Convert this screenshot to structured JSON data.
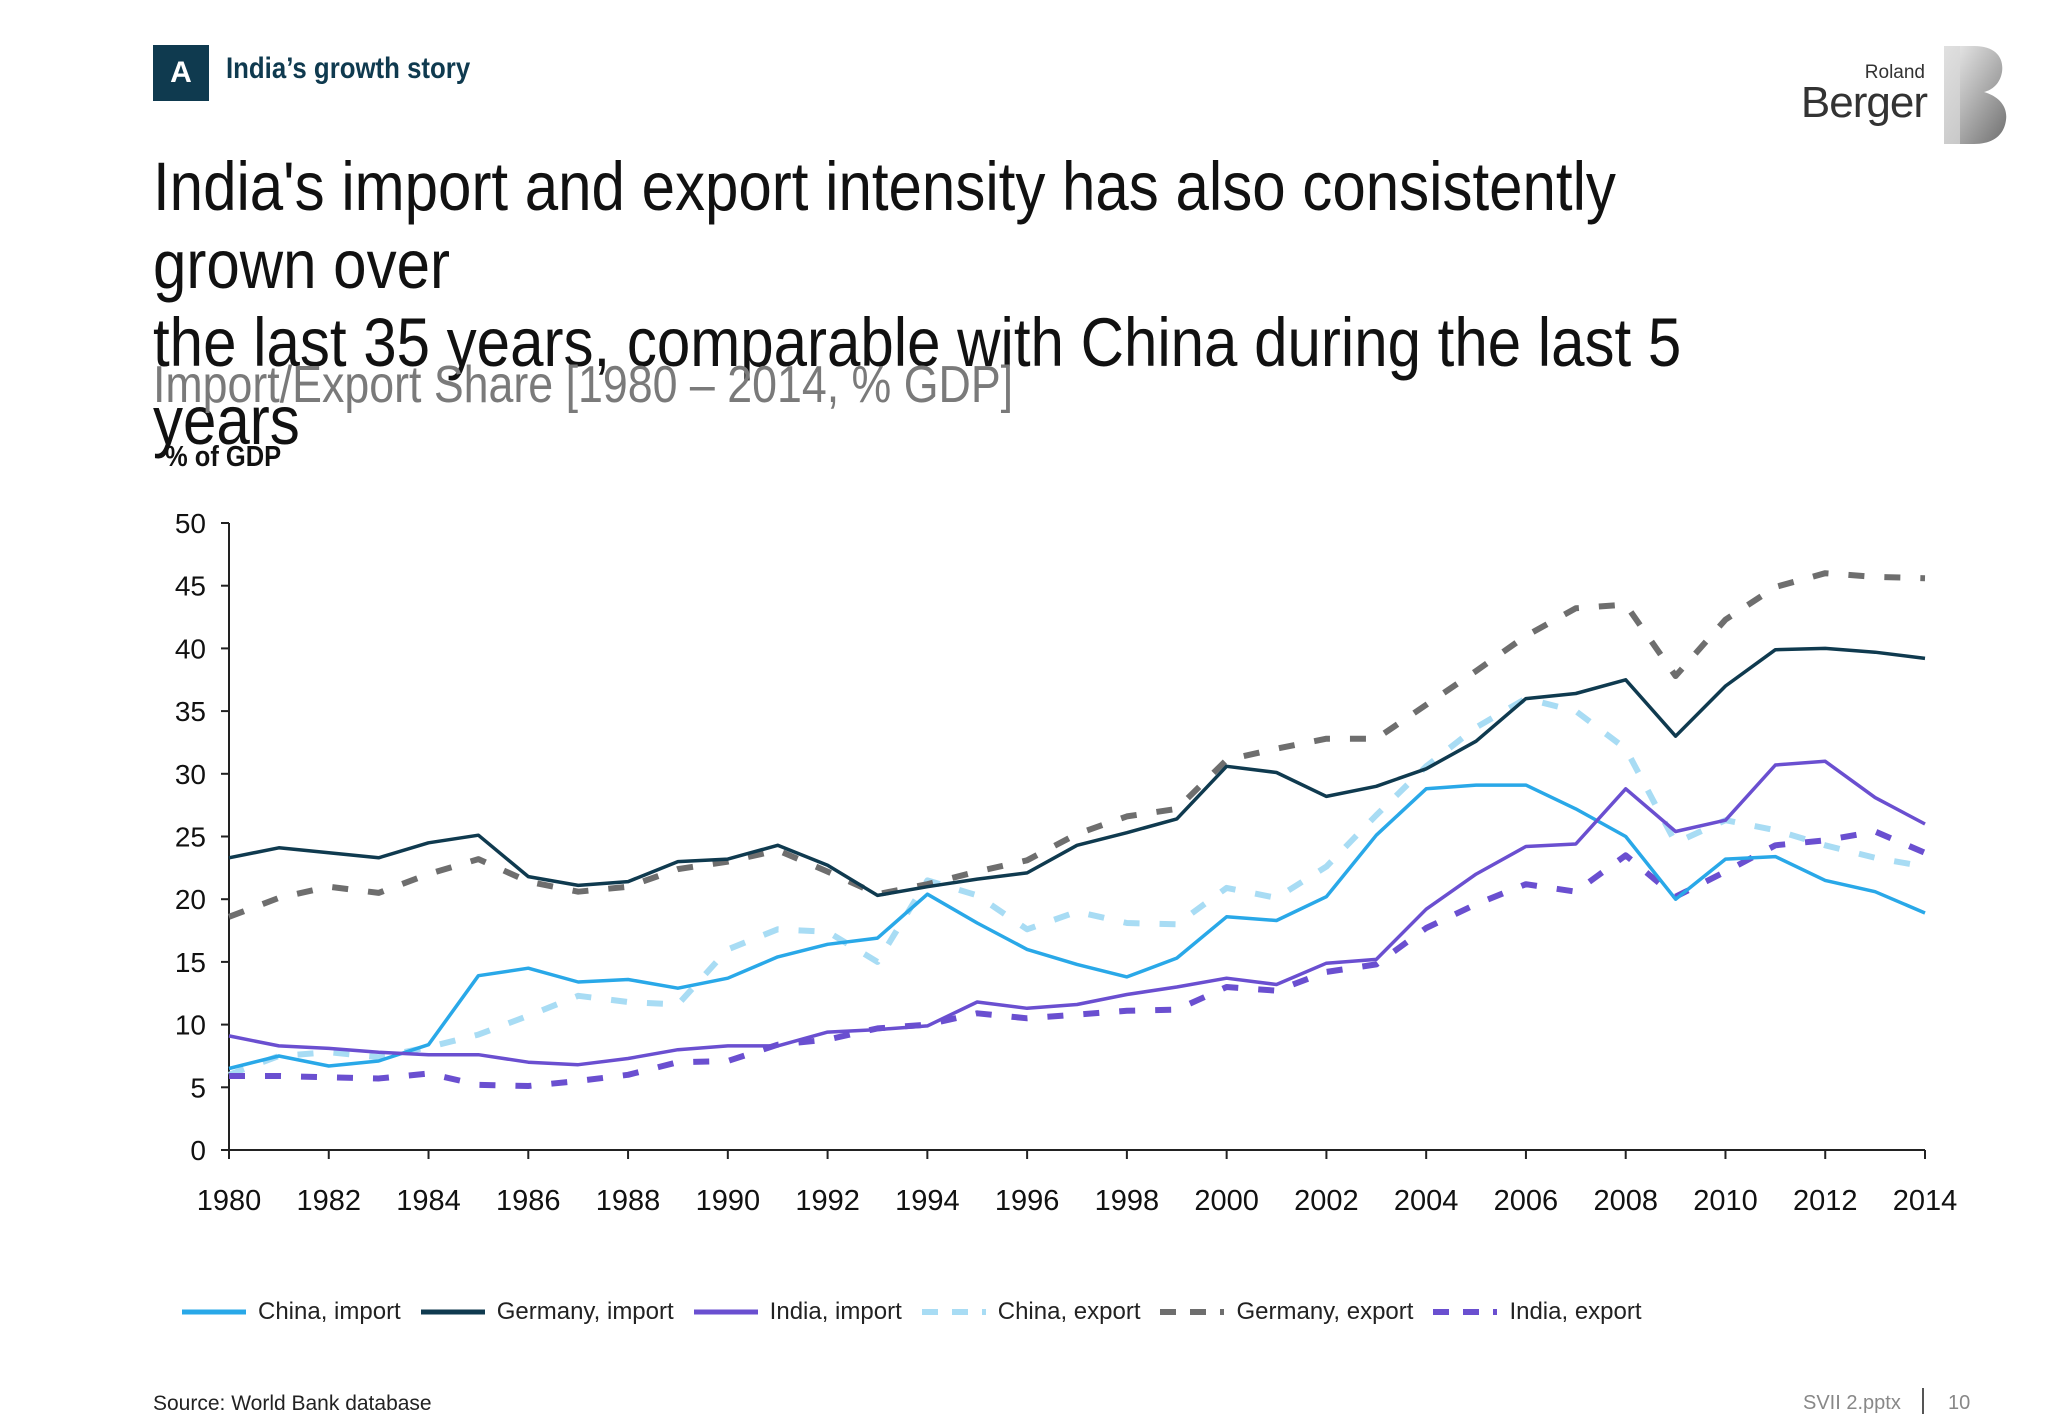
{
  "header": {
    "badge": "A",
    "section_title": "India’s growth story",
    "logo_small": "Roland",
    "logo_large": "Berger"
  },
  "headline": {
    "line1": "India's import and export intensity has also consistently grown over",
    "line2": "the last 35 years, comparable with China during the last 5 years"
  },
  "footer": {
    "source": "Source: World Bank database",
    "file": "SVII 2.pptx",
    "page": "10"
  },
  "colors": {
    "china": "#29a8e8",
    "germany": "#0f3a4f",
    "india": "#6a4fd0",
    "china_export": "#a8dcf4",
    "germany_export": "#6e6e6e",
    "india_export": "#6a4fd0",
    "axis": "#222222"
  },
  "chart_data": {
    "type": "line",
    "title": "Import/Export Share [1980 – 2014, % GDP]",
    "xlabel": "",
    "ylabel": "% of GDP",
    "ylim": [
      0,
      50
    ],
    "yticks": [
      0,
      5,
      10,
      15,
      20,
      25,
      30,
      35,
      40,
      45,
      50
    ],
    "xlim": [
      1980,
      2014
    ],
    "xticks": [
      1980,
      1982,
      1984,
      1986,
      1988,
      1990,
      1992,
      1994,
      1996,
      1998,
      2000,
      2002,
      2004,
      2006,
      2008,
      2010,
      2012,
      2014
    ],
    "grid": false,
    "legend_position": "bottom",
    "x": [
      1980,
      1981,
      1982,
      1983,
      1984,
      1985,
      1986,
      1987,
      1988,
      1989,
      1990,
      1991,
      1992,
      1993,
      1994,
      1995,
      1996,
      1997,
      1998,
      1999,
      2000,
      2001,
      2002,
      2003,
      2004,
      2005,
      2006,
      2007,
      2008,
      2009,
      2010,
      2011,
      2012,
      2013,
      2014
    ],
    "series": [
      {
        "name": "China, import",
        "style": "solid",
        "color": "#29a8e8",
        "values": [
          6.5,
          7.5,
          6.7,
          7.1,
          8.4,
          13.9,
          14.5,
          13.4,
          13.6,
          12.9,
          13.7,
          15.4,
          16.4,
          16.9,
          20.4,
          18.1,
          16.0,
          14.8,
          13.8,
          15.3,
          18.6,
          18.3,
          20.2,
          25.1,
          28.8,
          29.1,
          29.1,
          27.2,
          25.0,
          20.0,
          23.2,
          23.4,
          21.5,
          20.6,
          18.9
        ]
      },
      {
        "name": "Germany, import",
        "style": "solid",
        "color": "#0f3a4f",
        "values": [
          23.3,
          24.1,
          23.7,
          23.3,
          24.5,
          25.1,
          21.8,
          21.1,
          21.4,
          23.0,
          23.2,
          24.3,
          22.7,
          20.3,
          21.0,
          21.6,
          22.1,
          24.3,
          25.3,
          26.4,
          30.6,
          30.1,
          28.2,
          29.0,
          30.4,
          32.6,
          36.0,
          36.4,
          37.5,
          33.0,
          37.0,
          39.9,
          40.0,
          39.7,
          39.2
        ]
      },
      {
        "name": "India, import",
        "style": "solid",
        "color": "#6a4fd0",
        "values": [
          9.1,
          8.3,
          8.1,
          7.8,
          7.6,
          7.6,
          7.0,
          6.8,
          7.3,
          8.0,
          8.3,
          8.3,
          9.4,
          9.6,
          9.9,
          11.8,
          11.3,
          11.6,
          12.4,
          13.0,
          13.7,
          13.2,
          14.9,
          15.2,
          19.2,
          22.0,
          24.2,
          24.4,
          28.8,
          25.4,
          26.3,
          30.7,
          31.0,
          28.1,
          26.0
        ]
      },
      {
        "name": "China, export",
        "style": "dashed",
        "color": "#a8dcf4",
        "values": [
          6.0,
          7.5,
          7.8,
          7.4,
          8.2,
          9.2,
          10.7,
          12.3,
          11.8,
          11.6,
          16.0,
          17.6,
          17.4,
          15.0,
          21.5,
          20.3,
          17.6,
          19.0,
          18.1,
          18.0,
          20.9,
          20.1,
          22.6,
          26.7,
          30.6,
          33.7,
          36.0,
          35.0,
          32.0,
          24.5,
          26.3,
          25.5,
          24.3,
          23.3,
          22.6
        ]
      },
      {
        "name": "Germany, export",
        "style": "dashed",
        "color": "#6e6e6e",
        "values": [
          18.6,
          20.1,
          21.0,
          20.5,
          22.0,
          23.2,
          21.4,
          20.6,
          21.0,
          22.4,
          23.0,
          23.9,
          22.2,
          20.4,
          21.2,
          22.2,
          23.1,
          25.2,
          26.6,
          27.2,
          31.1,
          32.0,
          32.8,
          32.8,
          35.5,
          38.2,
          41.0,
          43.2,
          43.5,
          37.8,
          42.3,
          44.9,
          46.0,
          45.7,
          45.6
        ]
      },
      {
        "name": "India, export",
        "style": "dashed",
        "color": "#6a4fd0",
        "values": [
          5.9,
          5.9,
          5.8,
          5.7,
          6.1,
          5.2,
          5.1,
          5.5,
          6.0,
          7.0,
          7.1,
          8.4,
          8.8,
          9.7,
          10.0,
          10.9,
          10.5,
          10.8,
          11.1,
          11.2,
          13.0,
          12.7,
          14.2,
          14.8,
          17.7,
          19.6,
          21.2,
          20.6,
          23.5,
          20.2,
          22.2,
          24.3,
          24.7,
          25.4,
          23.7
        ]
      }
    ]
  }
}
